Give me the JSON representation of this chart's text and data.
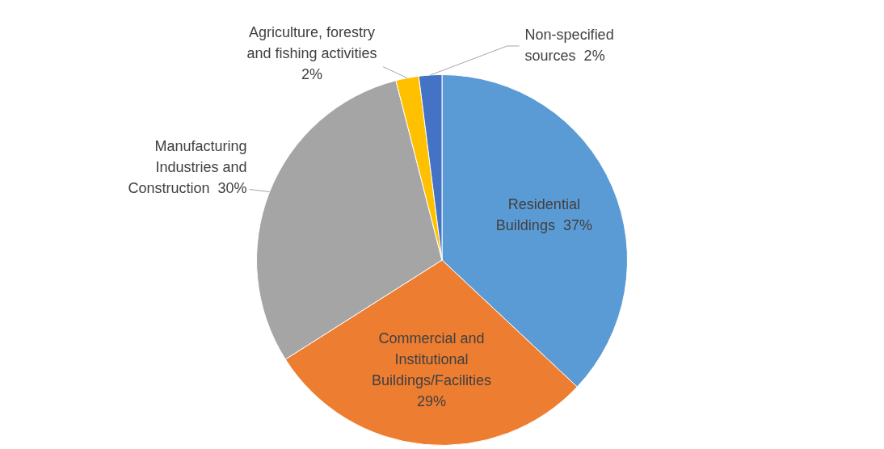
{
  "chart_data": {
    "type": "pie",
    "categories": [
      "Residential Buildings",
      "Commercial and Institutional Buildings/Facilities",
      "Manufacturing Industries and Construction",
      "Agriculture, forestry and fishing activities",
      "Non-specified sources"
    ],
    "values": [
      37,
      29,
      30,
      2,
      2
    ],
    "colors": [
      "#5b9bd5",
      "#ed7d31",
      "#a5a5a5",
      "#ffc000",
      "#4472c4"
    ],
    "value_labels": [
      "37%",
      "29%",
      "30%",
      "2%",
      "2%"
    ],
    "legend": false
  }
}
